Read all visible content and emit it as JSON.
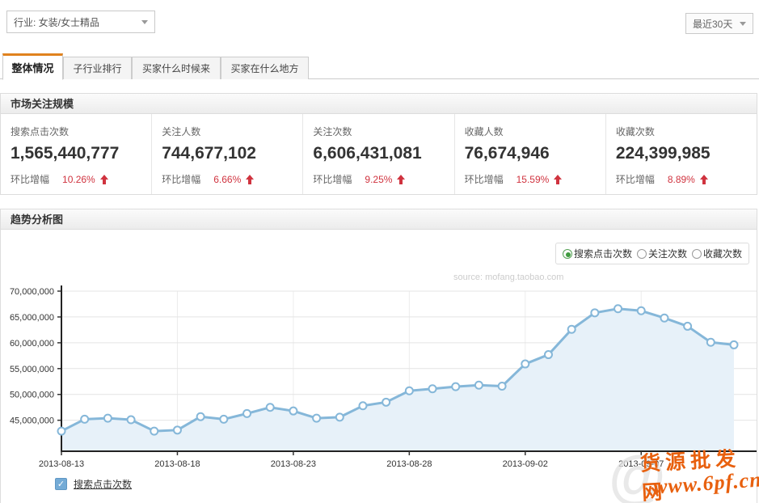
{
  "filters": {
    "industry": {
      "label": "行业: 女装/女士精品"
    },
    "date_range": {
      "label": "最近30天"
    }
  },
  "tabs": [
    {
      "label": "整体情况",
      "active": true
    },
    {
      "label": "子行业排行",
      "active": false
    },
    {
      "label": "买家什么时候来",
      "active": false
    },
    {
      "label": "买家在什么地方",
      "active": false
    }
  ],
  "market_section": {
    "title": "市场关注规模",
    "growth_label": "环比增幅",
    "metrics": [
      {
        "label": "搜索点击次数",
        "value": "1,565,440,777",
        "growth": "10.26%",
        "direction": "up"
      },
      {
        "label": "关注人数",
        "value": "744,677,102",
        "growth": "6.66%",
        "direction": "up"
      },
      {
        "label": "关注次数",
        "value": "6,606,431,081",
        "growth": "9.25%",
        "direction": "up"
      },
      {
        "label": "收藏人数",
        "value": "76,674,946",
        "growth": "15.59%",
        "direction": "up"
      },
      {
        "label": "收藏次数",
        "value": "224,399,985",
        "growth": "8.89%",
        "direction": "up"
      }
    ]
  },
  "trend_section": {
    "title": "趋势分析图",
    "metric_options": [
      {
        "label": "搜索点击次数",
        "selected": true
      },
      {
        "label": "关注次数",
        "selected": false
      },
      {
        "label": "收藏次数",
        "selected": false
      }
    ],
    "source_note": "source: mofang.taobao.com",
    "legend_checkbox": {
      "label": "搜索点击次数",
      "checked": true,
      "checkmark": "✓"
    }
  },
  "watermark": {
    "at_symbol": "@",
    "line1": "货源批发网",
    "line2": "www.6pf.cn"
  },
  "colors": {
    "accent_orange": "#e0821e",
    "growth_red": "#d0333f",
    "radio_green": "#3f9b3f",
    "checkbox_blue": "#74abd6",
    "axis_black": "#222222",
    "grid_gray": "#e4e4e4"
  },
  "chart_data": {
    "type": "line",
    "title": "趋势分析图",
    "series_name": "搜索点击次数",
    "x": [
      "2013-08-13",
      "2013-08-14",
      "2013-08-15",
      "2013-08-16",
      "2013-08-17",
      "2013-08-18",
      "2013-08-19",
      "2013-08-20",
      "2013-08-21",
      "2013-08-22",
      "2013-08-23",
      "2013-08-24",
      "2013-08-25",
      "2013-08-26",
      "2013-08-27",
      "2013-08-28",
      "2013-08-29",
      "2013-08-30",
      "2013-08-31",
      "2013-09-01",
      "2013-09-02",
      "2013-09-03",
      "2013-09-04",
      "2013-09-05",
      "2013-09-06",
      "2013-09-07",
      "2013-09-08",
      "2013-09-09",
      "2013-09-10",
      "2013-09-11"
    ],
    "values": [
      42900000,
      45200000,
      45400000,
      45100000,
      42900000,
      43100000,
      45700000,
      45200000,
      46300000,
      47500000,
      46800000,
      45400000,
      45600000,
      47800000,
      48500000,
      50700000,
      51100000,
      51500000,
      51800000,
      51600000,
      55900000,
      57700000,
      62600000,
      65800000,
      66600000,
      66200000,
      64800000,
      63200000,
      60100000,
      59600000
    ],
    "x_tick_labels": [
      "2013-08-13",
      "2013-08-18",
      "2013-08-23",
      "2013-08-28",
      "2013-09-02",
      "2013-09-07"
    ],
    "x_tick_every": 5,
    "y_ticks": [
      45000000,
      50000000,
      55000000,
      60000000,
      65000000,
      70000000
    ],
    "ylim": [
      39000000,
      70000000
    ],
    "grid": true,
    "line_color": "#85b7d9",
    "fill_color": "#e7f1f9",
    "marker_fill": "#fdfdfd"
  }
}
